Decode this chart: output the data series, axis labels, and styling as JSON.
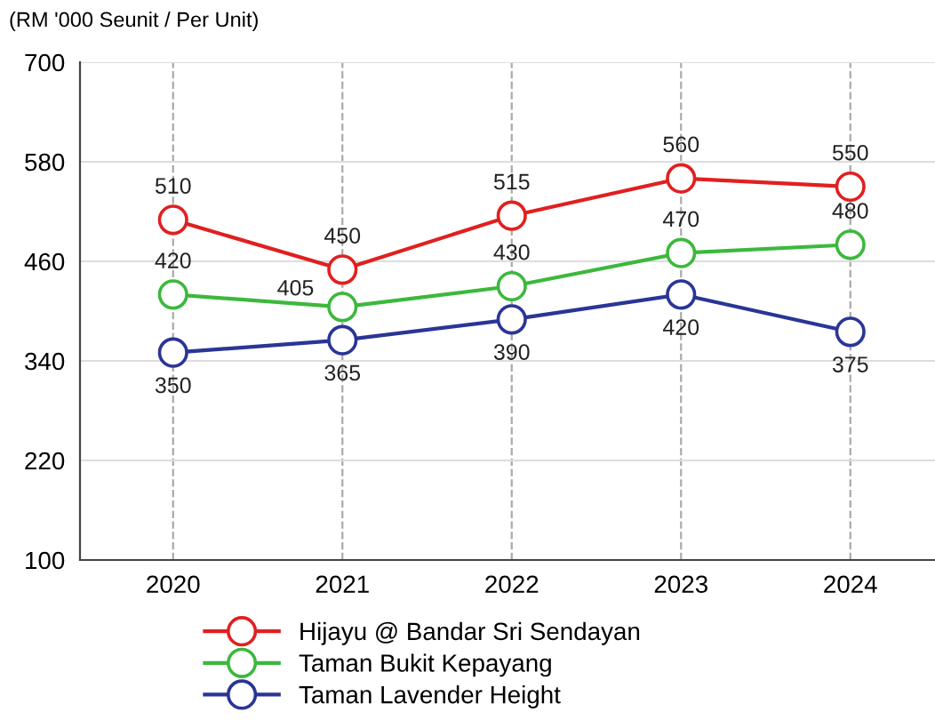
{
  "chart_data": {
    "type": "line",
    "ylabel": "(RM '000 Seunit / Per Unit)",
    "categories": [
      "2020",
      "2021",
      "2022",
      "2023",
      "2024"
    ],
    "series": [
      {
        "name": "Hijayu @ Bandar Sri Sendayan",
        "color": "#e02020",
        "values": [
          510,
          450,
          515,
          560,
          550
        ]
      },
      {
        "name": "Taman Bukit Kepayang",
        "color": "#3cb83c",
        "values": [
          420,
          405,
          430,
          470,
          480
        ]
      },
      {
        "name": "Taman Lavender Height",
        "color": "#2a3596",
        "values": [
          350,
          365,
          390,
          420,
          375
        ]
      }
    ],
    "ylim": [
      100,
      700
    ],
    "yticks": [
      100,
      220,
      340,
      460,
      580,
      700
    ],
    "grid": true,
    "legend": "bottom",
    "marker": "circle",
    "line_style": "solid",
    "data_labels": true
  }
}
